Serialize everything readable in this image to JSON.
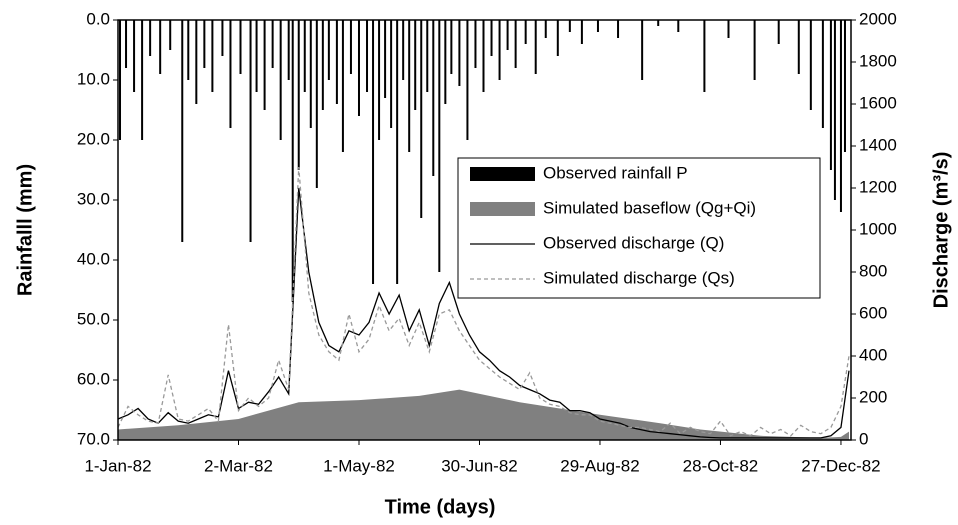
{
  "chart_data": {
    "type": "combo",
    "x_label": "Time (days)",
    "y_label": "Rainfalll (mm)",
    "y2_label": "Discharge (m³/s)",
    "xlim": [
      1,
      366
    ],
    "xticks": [
      {
        "value": 1,
        "label": "1-Jan-82"
      },
      {
        "value": 61,
        "label": "2-Mar-82"
      },
      {
        "value": 121,
        "label": "1-May-82"
      },
      {
        "value": 181,
        "label": "30-Jun-82"
      },
      {
        "value": 241,
        "label": "29-Aug-82"
      },
      {
        "value": 301,
        "label": "28-Oct-82"
      },
      {
        "value": 361,
        "label": "27-Dec-82"
      }
    ],
    "ylim": [
      70,
      0
    ],
    "yticks": [
      {
        "value": 0,
        "label": "0.0"
      },
      {
        "value": 10,
        "label": "10.0"
      },
      {
        "value": 20,
        "label": "20.0"
      },
      {
        "value": 30,
        "label": "30.0"
      },
      {
        "value": 40,
        "label": "40.0"
      },
      {
        "value": 50,
        "label": "50.0"
      },
      {
        "value": 60,
        "label": "60.0"
      },
      {
        "value": 70,
        "label": "70.0"
      }
    ],
    "y2lim": [
      0,
      2000
    ],
    "y2ticks": [
      0,
      200,
      400,
      600,
      800,
      1000,
      1200,
      1400,
      1600,
      1800,
      2000
    ],
    "series": [
      {
        "name": "Observed rainfall P",
        "type": "bar",
        "color": "#000000",
        "x": [
          2,
          5,
          9,
          13,
          17,
          22,
          27,
          33,
          36,
          40,
          44,
          48,
          53,
          57,
          62,
          67,
          70,
          74,
          78,
          82,
          86,
          88,
          91,
          94,
          97,
          100,
          103,
          106,
          110,
          113,
          117,
          121,
          125,
          128,
          131,
          134,
          137,
          140,
          143,
          146,
          149,
          152,
          155,
          158,
          161,
          164,
          167,
          171,
          175,
          179,
          183,
          187,
          191,
          195,
          199,
          204,
          209,
          214,
          220,
          226,
          232,
          240,
          250,
          262,
          270,
          280,
          293,
          305,
          318,
          330,
          340,
          346,
          352,
          356,
          358,
          361,
          363
        ],
        "values": [
          20,
          8,
          12,
          20,
          6,
          9,
          5,
          37,
          10,
          14,
          8,
          12,
          6,
          18,
          9,
          37,
          12,
          15,
          8,
          20,
          10,
          47,
          25,
          12,
          18,
          28,
          15,
          10,
          14,
          22,
          9,
          16,
          12,
          44,
          20,
          13,
          18,
          44,
          10,
          22,
          15,
          33,
          12,
          26,
          42,
          14,
          9,
          11,
          20,
          8,
          12,
          6,
          10,
          5,
          8,
          4,
          9,
          3,
          6,
          2,
          4,
          2,
          3,
          10,
          1,
          2,
          12,
          3,
          10,
          4,
          9,
          15,
          18,
          25,
          30,
          32,
          22
        ]
      },
      {
        "name": "Simulated baseflow (Qg+Qi)",
        "type": "area",
        "axis": "y2",
        "color": "#808080",
        "x": [
          1,
          31,
          61,
          91,
          121,
          151,
          171,
          201,
          241,
          271,
          291,
          321,
          351,
          361,
          365
        ],
        "values": [
          50,
          70,
          100,
          180,
          190,
          210,
          240,
          180,
          120,
          80,
          50,
          20,
          10,
          15,
          40
        ]
      },
      {
        "name": "Observed discharge (Q)",
        "type": "line",
        "axis": "y2",
        "color": "#000000",
        "x": [
          1,
          6,
          11,
          16,
          21,
          26,
          31,
          36,
          41,
          46,
          51,
          56,
          61,
          66,
          71,
          76,
          81,
          86,
          91,
          96,
          101,
          106,
          111,
          116,
          121,
          126,
          131,
          136,
          141,
          146,
          151,
          156,
          161,
          166,
          171,
          176,
          181,
          186,
          191,
          196,
          201,
          206,
          211,
          216,
          221,
          226,
          231,
          236,
          241,
          246,
          251,
          256,
          261,
          266,
          271,
          276,
          281,
          286,
          291,
          296,
          301,
          306,
          311,
          316,
          321,
          326,
          331,
          336,
          341,
          346,
          351,
          356,
          361,
          365
        ],
        "values": [
          100,
          120,
          150,
          100,
          80,
          130,
          90,
          80,
          100,
          120,
          110,
          330,
          150,
          180,
          170,
          230,
          300,
          220,
          1200,
          800,
          560,
          450,
          420,
          520,
          500,
          560,
          700,
          600,
          690,
          520,
          620,
          450,
          650,
          750,
          600,
          500,
          420,
          380,
          330,
          300,
          260,
          240,
          220,
          190,
          180,
          140,
          140,
          130,
          100,
          90,
          80,
          60,
          50,
          40,
          35,
          30,
          25,
          20,
          15,
          12,
          10,
          10,
          10,
          10,
          10,
          10,
          10,
          10,
          10,
          10,
          10,
          20,
          60,
          330
        ]
      },
      {
        "name": "Simulated discharge (Qs)",
        "type": "line",
        "dash": true,
        "axis": "y2",
        "color": "#999999",
        "x": [
          1,
          6,
          11,
          16,
          21,
          26,
          31,
          36,
          41,
          46,
          51,
          56,
          61,
          66,
          71,
          76,
          81,
          86,
          91,
          96,
          101,
          106,
          111,
          116,
          121,
          126,
          131,
          136,
          141,
          146,
          151,
          156,
          161,
          166,
          171,
          176,
          181,
          186,
          191,
          196,
          201,
          206,
          211,
          216,
          221,
          226,
          231,
          236,
          241,
          246,
          251,
          256,
          261,
          266,
          271,
          276,
          281,
          286,
          291,
          296,
          301,
          306,
          311,
          316,
          321,
          326,
          331,
          336,
          341,
          346,
          351,
          356,
          361,
          365
        ],
        "values": [
          60,
          160,
          120,
          90,
          80,
          310,
          100,
          90,
          120,
          150,
          90,
          550,
          140,
          200,
          160,
          200,
          380,
          240,
          1300,
          700,
          500,
          420,
          380,
          600,
          420,
          480,
          640,
          520,
          580,
          450,
          560,
          420,
          600,
          620,
          520,
          450,
          380,
          340,
          300,
          270,
          240,
          320,
          200,
          170,
          160,
          130,
          120,
          120,
          90,
          80,
          70,
          60,
          60,
          50,
          40,
          80,
          30,
          60,
          40,
          30,
          90,
          20,
          40,
          20,
          60,
          30,
          50,
          20,
          70,
          40,
          30,
          60,
          160,
          400
        ]
      }
    ]
  }
}
